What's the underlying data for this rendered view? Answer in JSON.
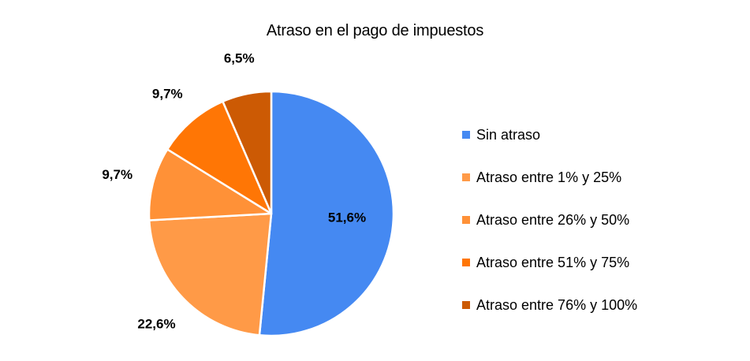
{
  "chart_data": {
    "type": "pie",
    "title": "Atraso en el pago de impuestos",
    "categories": [
      "Sin atraso",
      "Atraso entre 1% y 25%",
      "Atraso entre 26% y 50%",
      "Atraso entre 51% y 75%",
      "Atraso entre 76% y 100%"
    ],
    "values": [
      51.6,
      22.6,
      9.7,
      9.7,
      6.5
    ],
    "data_labels": [
      "51,6%",
      "22,6%",
      "9,7%",
      "9,7%",
      "6,5%"
    ],
    "colors": [
      "#4589f2",
      "#ff9a47",
      "#ff9137",
      "#ff7605",
      "#cc5a04"
    ],
    "legend_position": "right",
    "start_angle": "12 o'clock",
    "direction": "clockwise"
  }
}
